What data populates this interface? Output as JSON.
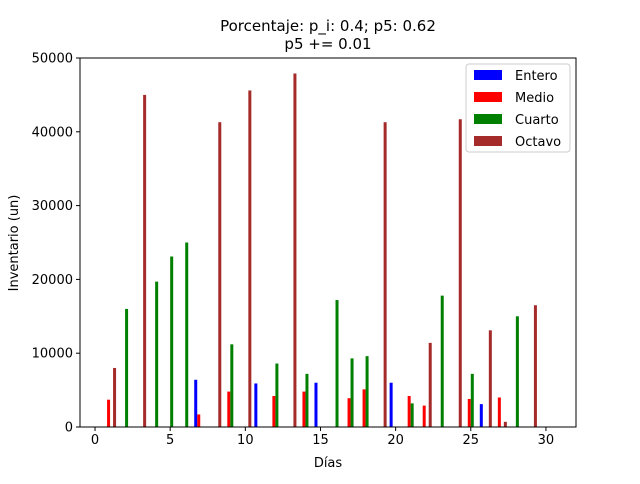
{
  "chart_data": {
    "type": "bar",
    "title_line1": "Porcentaje: p_i: 0.4; p5: 0.62",
    "title_line2": "p5 += 0.01",
    "xlabel": "Días",
    "ylabel": "Inventario (un)",
    "xlim": [
      -1,
      32
    ],
    "ylim": [
      0,
      50000
    ],
    "x_ticks": [
      0,
      5,
      10,
      15,
      20,
      25,
      30
    ],
    "y_ticks": [
      0,
      10000,
      20000,
      30000,
      40000,
      50000
    ],
    "x_tick_labels": [
      "0",
      "5",
      "10",
      "15",
      "20",
      "25",
      "30"
    ],
    "y_tick_labels": [
      "0",
      "10000",
      "20000",
      "30000",
      "40000",
      "50000"
    ],
    "legend_position": "top-right",
    "grid": false,
    "series": [
      {
        "name": "Entero",
        "color": "#0000ff",
        "points": [
          {
            "x": 6.7,
            "y": 6400
          },
          {
            "x": 10.7,
            "y": 5900
          },
          {
            "x": 14.7,
            "y": 6000
          },
          {
            "x": 19.7,
            "y": 6000
          },
          {
            "x": 25.7,
            "y": 3100
          }
        ]
      },
      {
        "name": "Medio",
        "color": "#ff0000",
        "points": [
          {
            "x": 0.9,
            "y": 3700
          },
          {
            "x": 6.9,
            "y": 1700
          },
          {
            "x": 8.9,
            "y": 4800
          },
          {
            "x": 11.9,
            "y": 4200
          },
          {
            "x": 13.9,
            "y": 4800
          },
          {
            "x": 16.9,
            "y": 3900
          },
          {
            "x": 17.9,
            "y": 5100
          },
          {
            "x": 20.9,
            "y": 4200
          },
          {
            "x": 21.9,
            "y": 2900
          },
          {
            "x": 24.9,
            "y": 3800
          },
          {
            "x": 26.9,
            "y": 4000
          }
        ]
      },
      {
        "name": "Cuarto",
        "color": "#008000",
        "points": [
          {
            "x": 2.1,
            "y": 16000
          },
          {
            "x": 4.1,
            "y": 19700
          },
          {
            "x": 5.1,
            "y": 23100
          },
          {
            "x": 6.1,
            "y": 25000
          },
          {
            "x": 9.1,
            "y": 11200
          },
          {
            "x": 12.1,
            "y": 8600
          },
          {
            "x": 14.1,
            "y": 7200
          },
          {
            "x": 16.1,
            "y": 17200
          },
          {
            "x": 17.1,
            "y": 9300
          },
          {
            "x": 18.1,
            "y": 9600
          },
          {
            "x": 21.1,
            "y": 3200
          },
          {
            "x": 23.1,
            "y": 17800
          },
          {
            "x": 25.1,
            "y": 7200
          },
          {
            "x": 28.1,
            "y": 15000
          }
        ]
      },
      {
        "name": "Octavo",
        "color": "#a52a2a",
        "points": [
          {
            "x": 1.3,
            "y": 8000
          },
          {
            "x": 3.3,
            "y": 45000
          },
          {
            "x": 8.3,
            "y": 41300
          },
          {
            "x": 10.3,
            "y": 45600
          },
          {
            "x": 13.3,
            "y": 47900
          },
          {
            "x": 19.3,
            "y": 41300
          },
          {
            "x": 22.3,
            "y": 11400
          },
          {
            "x": 24.3,
            "y": 41700
          },
          {
            "x": 26.3,
            "y": 13100
          },
          {
            "x": 27.3,
            "y": 700
          },
          {
            "x": 29.3,
            "y": 16500
          }
        ]
      }
    ]
  }
}
